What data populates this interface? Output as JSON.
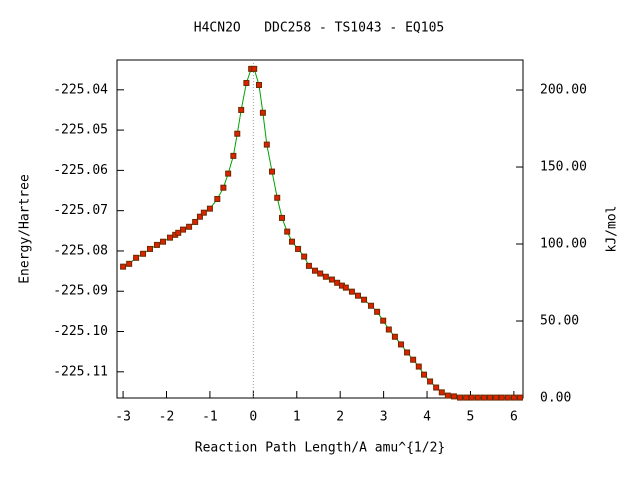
{
  "chart_data": {
    "type": "line",
    "title": "H4CN2O   DDC258 - TS1043 - EQ105",
    "x_label": "Reaction Path Length/A amu^{1/2}",
    "y_label": "Energy/Hartree",
    "y2_label": "kJ/mol",
    "line_color": "#00a000",
    "marker_color": "#dd2200",
    "vline": 0,
    "x": [
      -3.0,
      -2.86,
      -2.7,
      -2.54,
      -2.38,
      -2.22,
      -2.08,
      -1.92,
      -1.8,
      -1.73,
      -1.62,
      -1.48,
      -1.34,
      -1.23,
      -1.14,
      -1.0,
      -0.83,
      -0.69,
      -0.58,
      -0.46,
      -0.37,
      -0.28,
      -0.16,
      -0.05,
      0.02,
      0.13,
      0.22,
      0.31,
      0.43,
      0.55,
      0.66,
      0.78,
      0.89,
      1.03,
      1.17,
      1.28,
      1.42,
      1.54,
      1.67,
      1.81,
      1.93,
      2.04,
      2.13,
      2.27,
      2.41,
      2.55,
      2.71,
      2.85,
      2.99,
      3.12,
      3.26,
      3.4,
      3.54,
      3.68,
      3.81,
      3.93,
      4.07,
      4.21,
      4.34,
      4.48,
      4.62,
      4.76,
      4.9,
      5.03,
      5.17,
      5.31,
      5.45,
      5.59,
      5.72,
      5.86,
      6.0,
      6.14
    ],
    "values": [
      -225.0839,
      -225.0832,
      -225.0817,
      -225.0807,
      -225.0795,
      -225.0785,
      -225.0777,
      -225.0767,
      -225.076,
      -225.0755,
      -225.0747,
      -225.074,
      -225.0728,
      -225.0715,
      -225.0705,
      -225.0695,
      -225.0671,
      -225.0643,
      -225.0608,
      -225.0564,
      -225.0509,
      -225.045,
      -225.0383,
      -225.0348,
      -225.0348,
      -225.0388,
      -225.0457,
      -225.0536,
      -225.0603,
      -225.0668,
      -225.0718,
      -225.0752,
      -225.0777,
      -225.0795,
      -225.0814,
      -225.0837,
      -225.0849,
      -225.0856,
      -225.0864,
      -225.0871,
      -225.0879,
      -225.0886,
      -225.0891,
      -225.0901,
      -225.0911,
      -225.0921,
      -225.0936,
      -225.0951,
      -225.0973,
      -225.0995,
      -225.1013,
      -225.1032,
      -225.1052,
      -225.107,
      -225.1087,
      -225.1107,
      -225.1124,
      -225.1139,
      -225.1151,
      -225.1159,
      -225.1161,
      -225.1164,
      -225.1164,
      -225.1164,
      -225.1164,
      -225.1164,
      -225.1164,
      -225.1164,
      -225.1164,
      -225.1164,
      -225.1164,
      -225.1164
    ],
    "xlim": [
      -3.14,
      6.21
    ],
    "xticks": [
      -3,
      -2,
      -1,
      0,
      1,
      2,
      3,
      4,
      5,
      6
    ],
    "ylim": [
      -225.1165,
      -225.0326
    ],
    "yticks": [
      -225.04,
      -225.05,
      -225.06,
      -225.07,
      -225.08,
      -225.09,
      {
        "value": -225.1,
        "label": "-225.10"
      },
      -225.11
    ],
    "y2lim": [
      0,
      219.5
    ],
    "y2ticks": [
      {
        "value": 0,
        "label": "0.00"
      },
      {
        "value": 50,
        "label": "50.00"
      },
      {
        "value": 100,
        "label": "100.00"
      },
      {
        "value": 150,
        "label": "150.00"
      },
      {
        "value": 200,
        "label": "200.00"
      }
    ]
  }
}
